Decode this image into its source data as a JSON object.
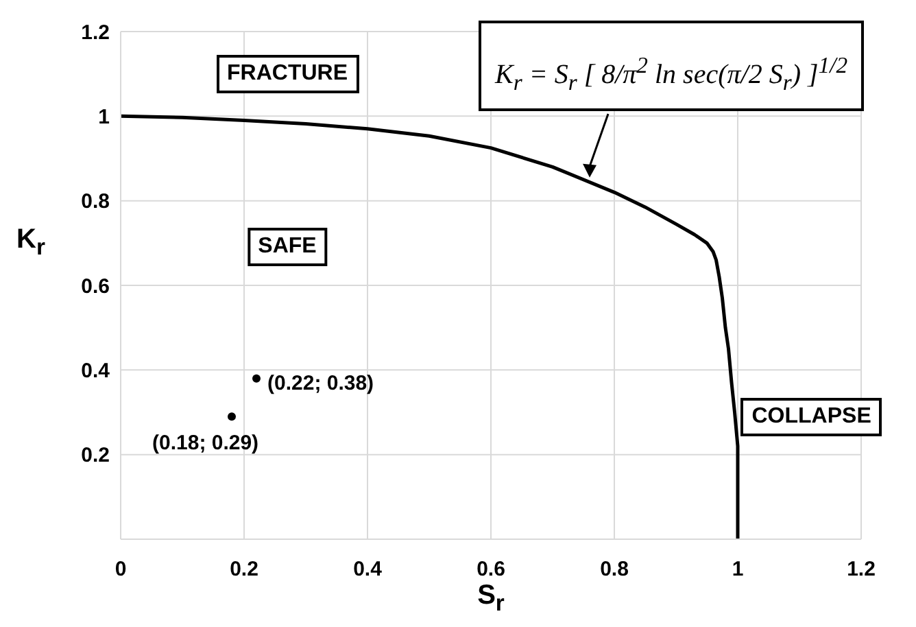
{
  "chart_data": {
    "type": "line",
    "xlabel": "S$_{r}$",
    "ylabel": "K$_{r}$",
    "xlim": [
      0,
      1.2
    ],
    "ylim": [
      0,
      1.2
    ],
    "xticks": [
      0,
      0.2,
      0.4,
      0.6,
      0.8,
      1,
      1.2
    ],
    "yticks": [
      {
        "value": 0,
        "label": null
      },
      0.2,
      0.4,
      0.6,
      0.8,
      1,
      1.2
    ],
    "grid": true,
    "series": [
      {
        "color": "#000000",
        "marker": "none",
        "line_style": "solid",
        "x": [
          0,
          0.1,
          0.2,
          0.3,
          0.4,
          0.5,
          0.6,
          0.7,
          0.8,
          0.85,
          0.9,
          0.93,
          0.95,
          0.96,
          0.965,
          0.97,
          0.975,
          0.98,
          0.985,
          0.99,
          0.995,
          1,
          1
        ],
        "values": [
          1,
          0.997,
          0.99,
          0.982,
          0.97,
          0.953,
          0.925,
          0.88,
          0.82,
          0.785,
          0.745,
          0.72,
          0.7,
          0.68,
          0.66,
          0.62,
          0.57,
          0.5,
          0.45,
          0.37,
          0.3,
          0.22,
          0
        ]
      },
      {
        "type": "scatter",
        "color": "#000000",
        "marker": "circle",
        "x": [
          0.22,
          0.18
        ],
        "values": [
          0.38,
          0.29
        ],
        "value_labels": [
          "(0.22; 0.38)",
          "(0.18; 0.29)"
        ]
      }
    ],
    "annotations": [
      "K$_{r}$ = S$_{r}$ [ 8/π$^{2}$ ln sec(π/2 S$_{r}$) ]$^{1/2}$",
      "FRACTURE",
      "SAFE",
      "COLLAPSE"
    ]
  }
}
